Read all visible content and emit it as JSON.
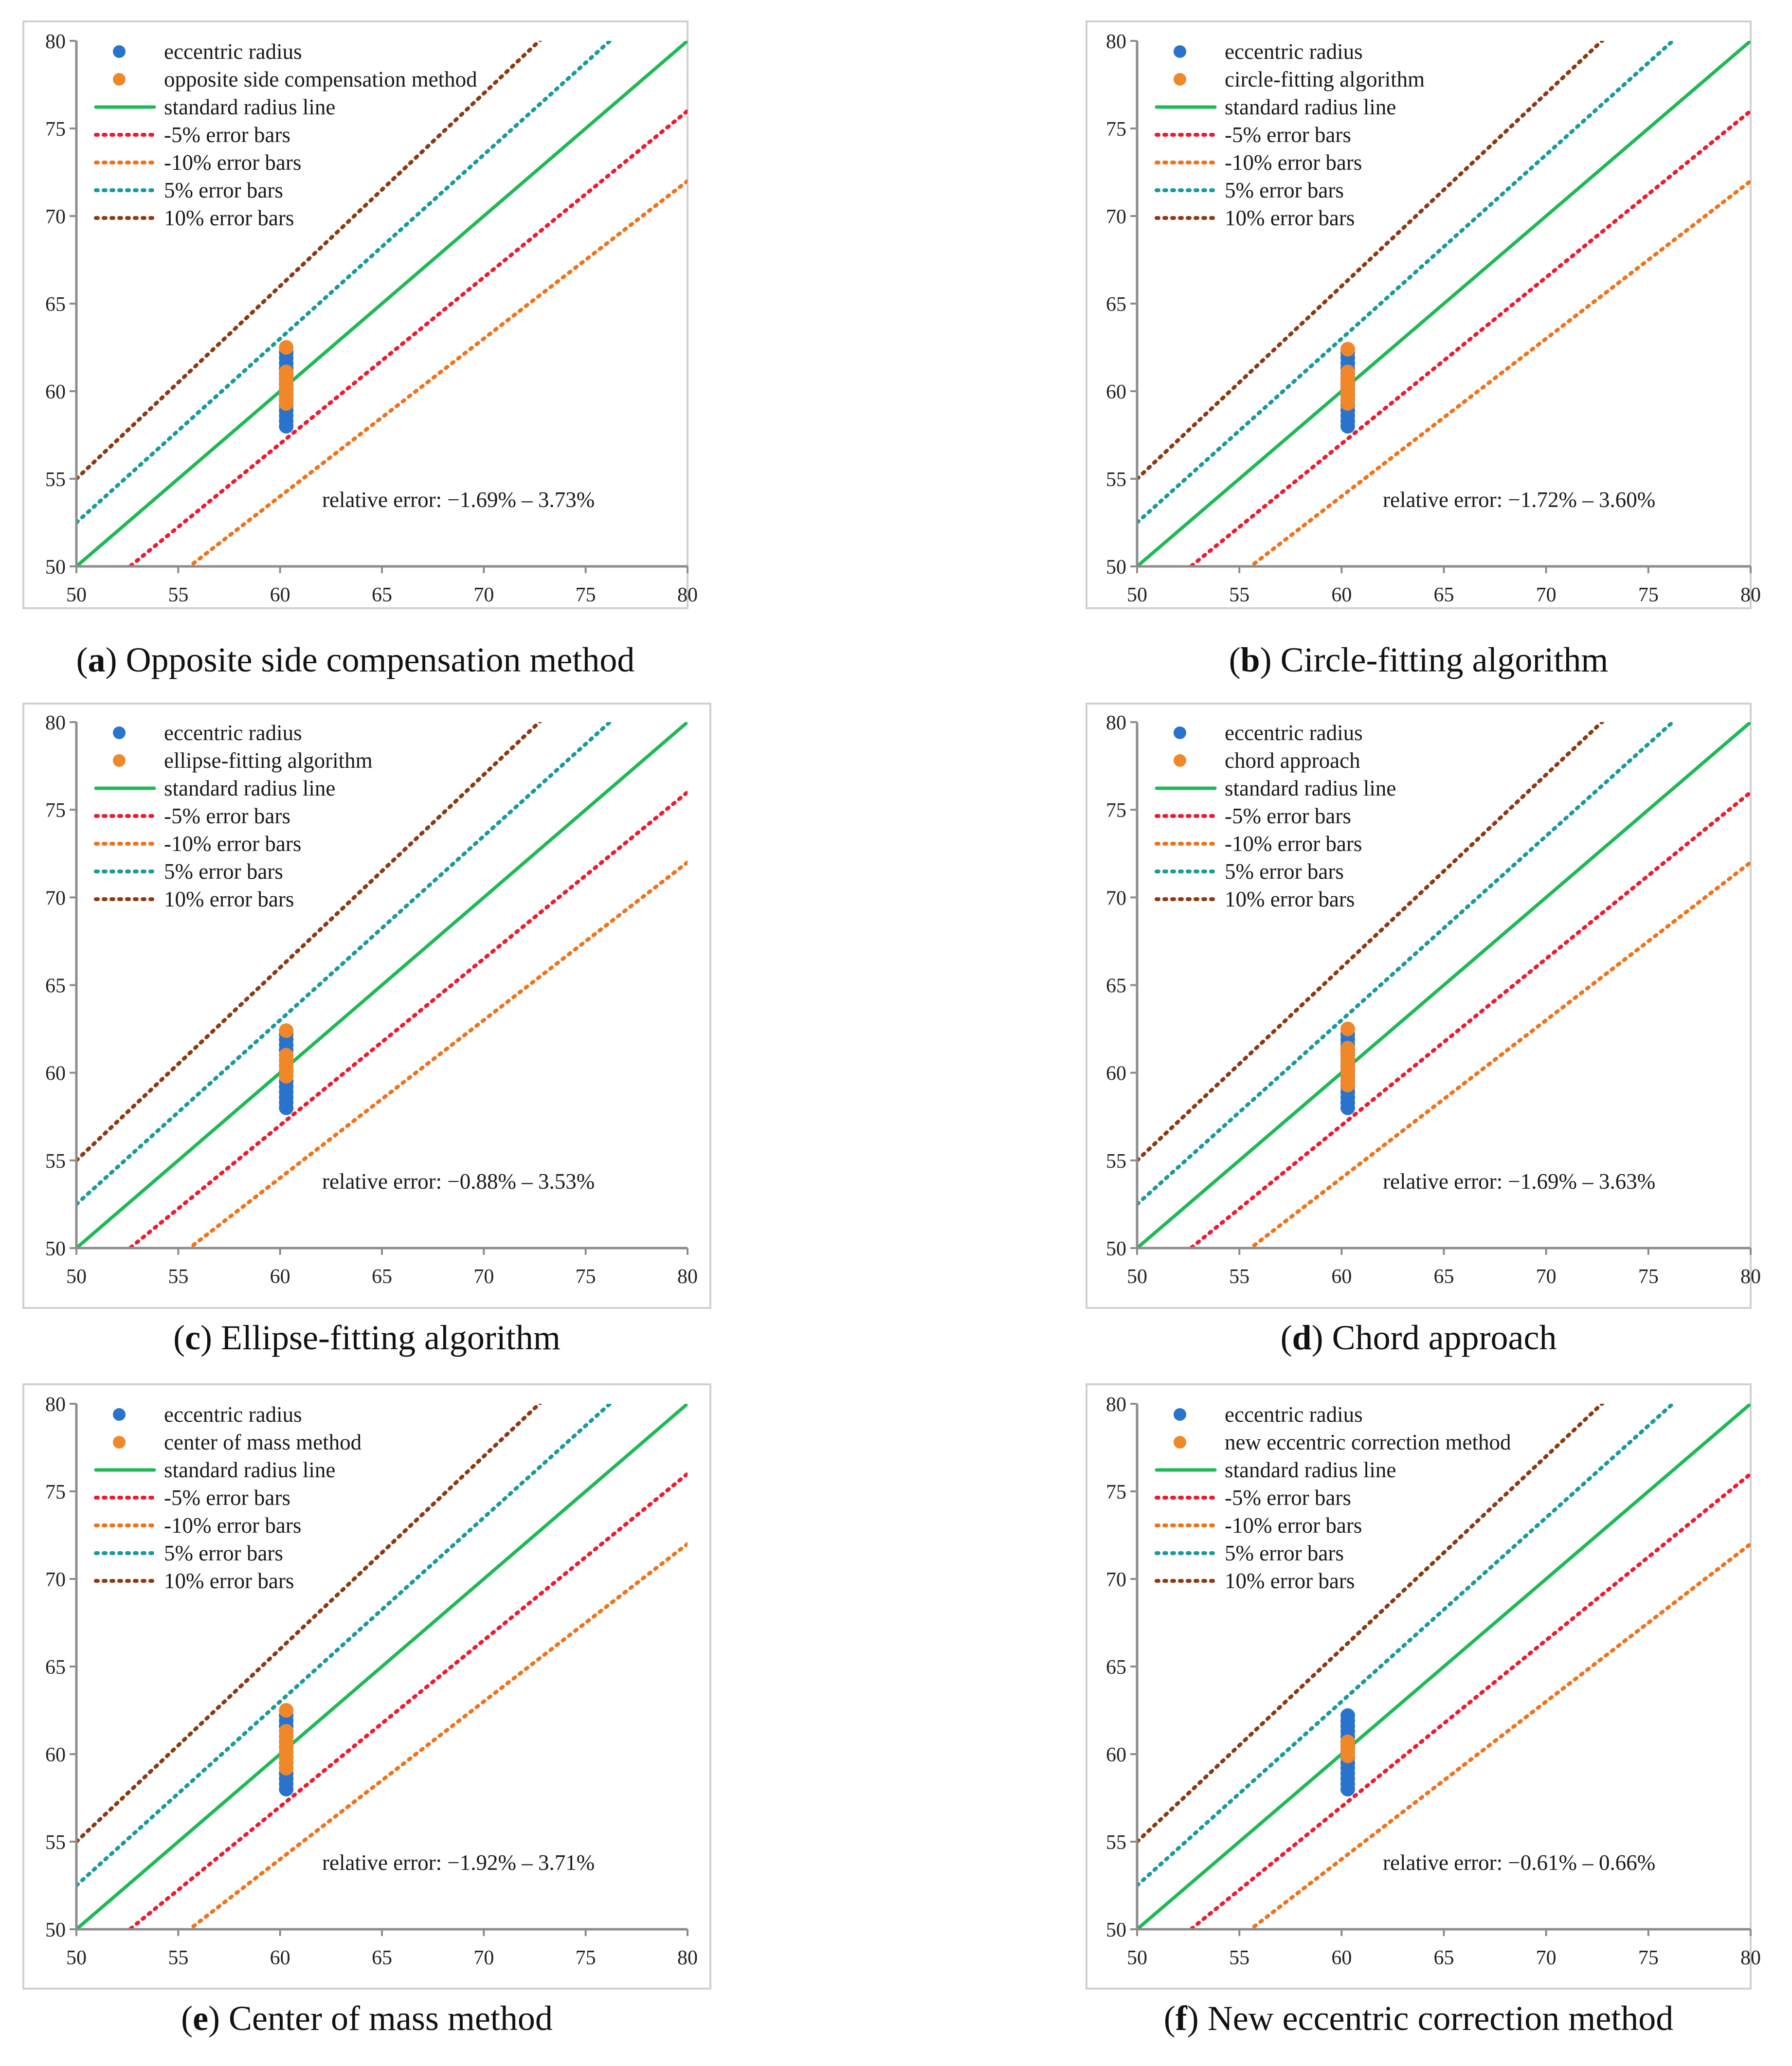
{
  "colors": {
    "eccentric": "#2a73cc",
    "method": "#f0882a",
    "standard": "#1db954",
    "minus5": "#ee1b30",
    "minus10": "#f0731c",
    "plus5": "#1a9a9a",
    "plus10": "#8c3a14"
  },
  "chart_data": [
    {
      "id": "a",
      "type": "scatter",
      "caption_letter": "a",
      "caption_text": "Opposite side compensation method",
      "xlim": [
        50,
        80
      ],
      "ylim": [
        50,
        80
      ],
      "x_ticks": [
        50,
        55,
        60,
        65,
        70,
        75,
        80
      ],
      "y_ticks": [
        50,
        55,
        60,
        65,
        70,
        75,
        80
      ],
      "legend": [
        "eccentric radius",
        "opposite side compensation method",
        "standard radius line",
        "-5% error bars",
        "-10% error bars",
        "5% error bars",
        "10% error bars"
      ],
      "annotation_label": "relative error:",
      "annotation_value": "−1.69% – 3.73%",
      "x_value": 60.3,
      "eccentric_radius": [
        58.0,
        58.3,
        58.6,
        58.9,
        59.2,
        59.5,
        59.8,
        60.1,
        60.4,
        60.7,
        61.0,
        61.3,
        61.6,
        61.9,
        62.2
      ],
      "method_values": [
        59.3,
        59.6,
        59.9,
        60.2,
        60.5,
        60.8,
        61.1,
        62.5
      ],
      "lines": [
        {
          "name": "standard radius line",
          "factor": 1.0
        },
        {
          "name": "-5% error bars",
          "factor": 0.95
        },
        {
          "name": "-10% error bars",
          "factor": 0.9
        },
        {
          "name": "5% error bars",
          "factor": 1.05
        },
        {
          "name": "10% error bars",
          "factor": 1.1
        }
      ]
    },
    {
      "id": "b",
      "type": "scatter",
      "caption_letter": "b",
      "caption_text": "Circle-fitting algorithm",
      "xlim": [
        50,
        80
      ],
      "ylim": [
        50,
        80
      ],
      "x_ticks": [
        50,
        55,
        60,
        65,
        70,
        75,
        80
      ],
      "y_ticks": [
        50,
        55,
        60,
        65,
        70,
        75,
        80
      ],
      "legend": [
        "eccentric radius",
        "circle-fitting algorithm",
        "standard radius line",
        "-5% error bars",
        "-10% error bars",
        "5% error bars",
        "10% error bars"
      ],
      "annotation_label": "relative error:",
      "annotation_value": "−1.72% – 3.60%",
      "x_value": 60.3,
      "eccentric_radius": [
        58.0,
        58.3,
        58.6,
        58.9,
        59.2,
        59.5,
        59.8,
        60.1,
        60.4,
        60.7,
        61.0,
        61.3,
        61.6,
        61.9,
        62.2
      ],
      "method_values": [
        59.3,
        59.6,
        59.9,
        60.2,
        60.5,
        60.8,
        61.1,
        62.4
      ],
      "lines": [
        {
          "name": "standard radius line",
          "factor": 1.0
        },
        {
          "name": "-5% error bars",
          "factor": 0.95
        },
        {
          "name": "-10% error bars",
          "factor": 0.9
        },
        {
          "name": "5% error bars",
          "factor": 1.05
        },
        {
          "name": "10% error bars",
          "factor": 1.1
        }
      ]
    },
    {
      "id": "c",
      "type": "scatter",
      "caption_letter": "c",
      "caption_text": "Ellipse-fitting algorithm",
      "xlim": [
        50,
        80
      ],
      "ylim": [
        50,
        80
      ],
      "x_ticks": [
        50,
        55,
        60,
        65,
        70,
        75,
        80
      ],
      "y_ticks": [
        50,
        55,
        60,
        65,
        70,
        75,
        80
      ],
      "legend": [
        "eccentric radius",
        "ellipse-fitting algorithm",
        "standard radius line",
        "-5% error bars",
        "-10% error bars",
        "5% error bars",
        "10% error bars"
      ],
      "annotation_label": "relative error:",
      "annotation_value": "−0.88% – 3.53%",
      "x_value": 60.3,
      "eccentric_radius": [
        58.0,
        58.3,
        58.6,
        58.9,
        59.2,
        59.5,
        59.8,
        60.1,
        60.4,
        60.7,
        61.0,
        61.3,
        61.6,
        61.9,
        62.2
      ],
      "method_values": [
        59.8,
        60.1,
        60.4,
        60.7,
        61.0,
        62.4
      ],
      "lines": [
        {
          "name": "standard radius line",
          "factor": 1.0
        },
        {
          "name": "-5% error bars",
          "factor": 0.95
        },
        {
          "name": "-10% error bars",
          "factor": 0.9
        },
        {
          "name": "5% error bars",
          "factor": 1.05
        },
        {
          "name": "10% error bars",
          "factor": 1.1
        }
      ]
    },
    {
      "id": "d",
      "type": "scatter",
      "caption_letter": "d",
      "caption_text": "Chord approach",
      "xlim": [
        50,
        80
      ],
      "ylim": [
        50,
        80
      ],
      "x_ticks": [
        50,
        55,
        60,
        65,
        70,
        75,
        80
      ],
      "y_ticks": [
        50,
        55,
        60,
        65,
        70,
        75,
        80
      ],
      "legend": [
        "eccentric radius",
        "chord approach",
        "standard radius line",
        "-5% error bars",
        "-10% error bars",
        "5% error bars",
        "10% error bars"
      ],
      "annotation_label": "relative error:",
      "annotation_value": "−1.69% – 3.63%",
      "x_value": 60.3,
      "eccentric_radius": [
        58.0,
        58.3,
        58.6,
        58.9,
        59.2,
        59.5,
        59.8,
        60.1,
        60.4,
        60.7,
        61.0,
        61.3,
        61.6,
        61.9,
        62.2
      ],
      "method_values": [
        59.3,
        59.6,
        59.9,
        60.2,
        60.5,
        60.8,
        61.1,
        61.4,
        62.5
      ],
      "lines": [
        {
          "name": "standard radius line",
          "factor": 1.0
        },
        {
          "name": "-5% error bars",
          "factor": 0.95
        },
        {
          "name": "-10% error bars",
          "factor": 0.9
        },
        {
          "name": "5% error bars",
          "factor": 1.05
        },
        {
          "name": "10% error bars",
          "factor": 1.1
        }
      ]
    },
    {
      "id": "e",
      "type": "scatter",
      "caption_letter": "e",
      "caption_text": "Center of mass method",
      "xlim": [
        50,
        80
      ],
      "ylim": [
        50,
        80
      ],
      "x_ticks": [
        50,
        55,
        60,
        65,
        70,
        75,
        80
      ],
      "y_ticks": [
        50,
        55,
        60,
        65,
        70,
        75,
        80
      ],
      "legend": [
        "eccentric radius",
        "center of mass method",
        "standard radius line",
        "-5% error bars",
        "-10% error bars",
        "5% error bars",
        "10% error bars"
      ],
      "annotation_label": "relative error:",
      "annotation_value": "−1.92% – 3.71%",
      "x_value": 60.3,
      "eccentric_radius": [
        58.0,
        58.3,
        58.6,
        58.9,
        59.2,
        59.5,
        59.8,
        60.1,
        60.4,
        60.7,
        61.0,
        61.3,
        61.6,
        61.9,
        62.2
      ],
      "method_values": [
        59.2,
        59.5,
        59.8,
        60.1,
        60.4,
        60.7,
        61.0,
        61.3,
        62.5
      ],
      "lines": [
        {
          "name": "standard radius line",
          "factor": 1.0
        },
        {
          "name": "-5% error bars",
          "factor": 0.95
        },
        {
          "name": "-10% error bars",
          "factor": 0.9
        },
        {
          "name": "5% error bars",
          "factor": 1.05
        },
        {
          "name": "10% error bars",
          "factor": 1.1
        }
      ]
    },
    {
      "id": "f",
      "type": "scatter",
      "caption_letter": "f",
      "caption_text": "New eccentric correction method",
      "xlim": [
        50,
        80
      ],
      "ylim": [
        50,
        80
      ],
      "x_ticks": [
        50,
        55,
        60,
        65,
        70,
        75,
        80
      ],
      "y_ticks": [
        50,
        55,
        60,
        65,
        70,
        75,
        80
      ],
      "legend": [
        "eccentric radius",
        "new eccentric correction method",
        "standard radius line",
        "-5% error bars",
        "-10% error bars",
        "5% error bars",
        "10% error bars"
      ],
      "annotation_label": "relative error:",
      "annotation_value": "−0.61% – 0.66%",
      "x_value": 60.3,
      "eccentric_radius": [
        58.0,
        58.3,
        58.6,
        58.9,
        59.2,
        59.5,
        59.8,
        60.1,
        60.4,
        60.7,
        61.0,
        61.3,
        61.6,
        61.9,
        62.2
      ],
      "method_values": [
        59.9,
        60.2,
        60.5,
        60.7
      ],
      "lines": [
        {
          "name": "standard radius line",
          "factor": 1.0
        },
        {
          "name": "-5% error bars",
          "factor": 0.95
        },
        {
          "name": "-10% error bars",
          "factor": 0.9
        },
        {
          "name": "5% error bars",
          "factor": 1.05
        },
        {
          "name": "10% error bars",
          "factor": 1.1
        }
      ]
    }
  ]
}
